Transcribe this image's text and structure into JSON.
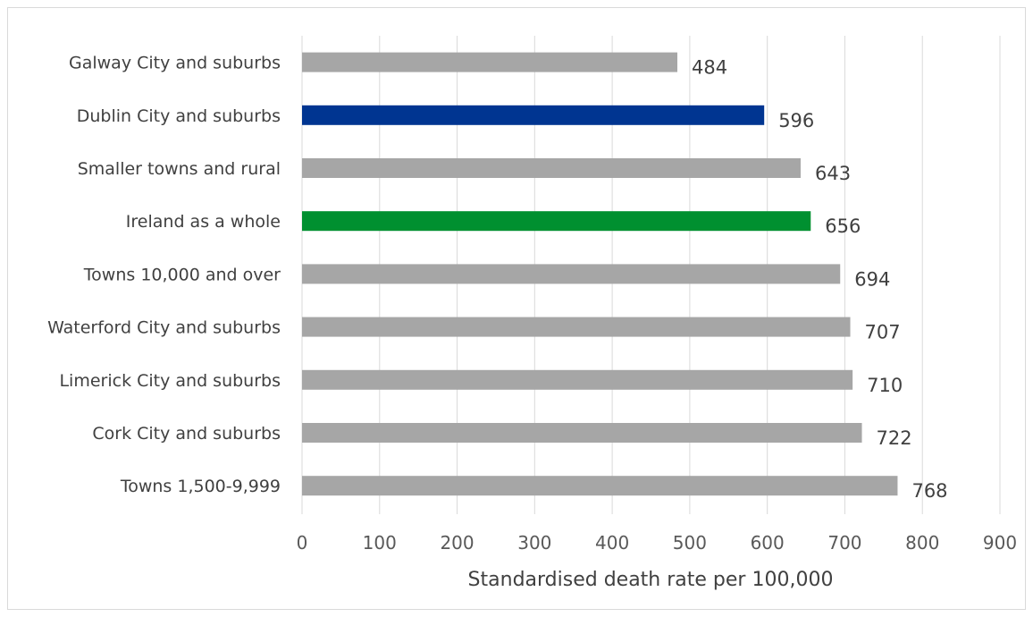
{
  "chart_data": {
    "type": "bar",
    "orientation": "horizontal",
    "categories": [
      "Galway City and suburbs",
      "Dublin City and suburbs",
      "Smaller towns and rural",
      "Ireland as a whole",
      "Towns 10,000 and over",
      "Waterford City and suburbs",
      "Limerick City and suburbs",
      "Cork City and suburbs",
      "Towns 1,500-9,999"
    ],
    "values": [
      484,
      596,
      643,
      656,
      694,
      707,
      710,
      722,
      768
    ],
    "value_labels": [
      "484",
      "596",
      "643",
      "656",
      "694",
      "707",
      "710",
      "722",
      "768"
    ],
    "bar_colors": [
      "#a6a6a6",
      "#003591",
      "#a6a6a6",
      "#009030",
      "#a6a6a6",
      "#a6a6a6",
      "#a6a6a6",
      "#a6a6a6",
      "#a6a6a6"
    ],
    "x_ticks": [
      0,
      100,
      200,
      300,
      400,
      500,
      600,
      700,
      800,
      900
    ],
    "x_tick_labels": [
      "0",
      "100",
      "200",
      "300",
      "400",
      "500",
      "600",
      "700",
      "800",
      "900"
    ],
    "xlim": [
      0,
      900
    ],
    "xlabel": "Standardised death rate per 100,000",
    "title": "",
    "grid": true,
    "legend": "none"
  }
}
